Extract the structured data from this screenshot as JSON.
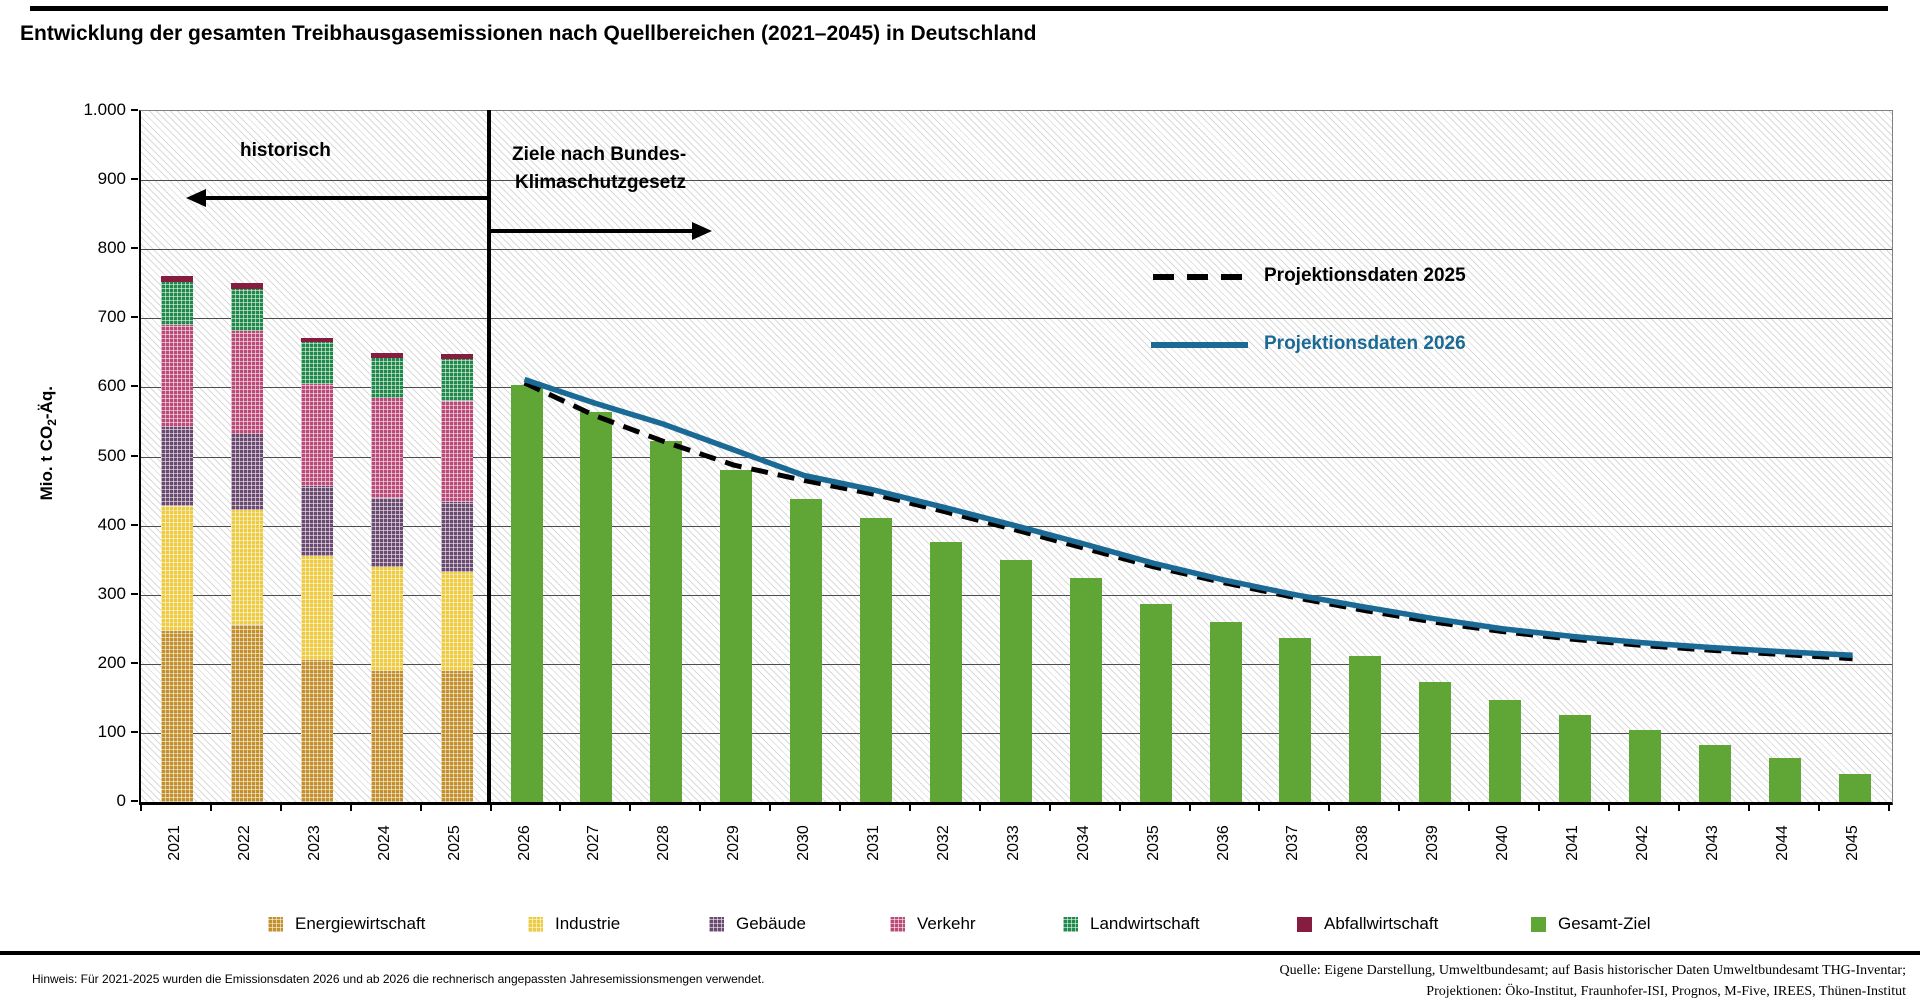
{
  "title": "Entwicklung der gesamten Treibhausgasemissionen nach Quellbereichen (2021–2045) in Deutschland",
  "y_axis": {
    "label_prefix": "Mio. t CO",
    "label_sub": "2",
    "label_suffix": "-Äq.",
    "ticks": [
      "1.000",
      "900",
      "800",
      "700",
      "600",
      "500",
      "400",
      "300",
      "200",
      "100",
      "0"
    ]
  },
  "annotations": {
    "historical": "historisch",
    "targets_line1": "Ziele nach Bundes-",
    "targets_line2": "Klimaschutzgesetz"
  },
  "line_legend": [
    {
      "label": "Projektionsdaten 2025",
      "style": "dashed",
      "color": "#000000"
    },
    {
      "label": "Projektionsdaten 2026",
      "style": "solid",
      "color": "#1b6a96"
    }
  ],
  "legend": [
    {
      "label": "Energiewirtschaft",
      "color": "#c3902c",
      "pattern": true
    },
    {
      "label": "Industrie",
      "color": "#efcb3f",
      "pattern": true
    },
    {
      "label": "Gebäude",
      "color": "#6b4a72",
      "pattern": true
    },
    {
      "label": "Verkehr",
      "color": "#bc4a78",
      "pattern": true
    },
    {
      "label": "Landwirtschaft",
      "color": "#1f8a4a",
      "pattern": true
    },
    {
      "label": "Abfallwirtschaft",
      "color": "#871c41",
      "pattern": false
    },
    {
      "label": "Gesamt-Ziel",
      "color": "#5fa636",
      "pattern": false
    }
  ],
  "footnote": "Hinweis: Für 2021-2025 wurden die Emissionsdaten 2026 und ab 2026 die rechnerisch angepassten Jahresemissionsmengen verwendet.",
  "source_line1": "Quelle: Eigene Darstellung, Umweltbundesamt; auf Basis historischer Daten Umweltbundesamt THG-Inventar;",
  "source_line2": "Projektionen: Öko-Institut, Fraunhofer-ISI, Prognos, M-Five, IREES, Thünen-Institut",
  "chart_data": {
    "type": "combo",
    "title": "Entwicklung der gesamten Treibhausgasemissionen nach Quellbereichen (2021–2045) in Deutschland",
    "ylabel": "Mio. t CO2-Äq.",
    "ylim": [
      0,
      1000
    ],
    "grid": true,
    "years_historical": [
      2021,
      2022,
      2023,
      2024,
      2025
    ],
    "stacked_series": [
      {
        "name": "Energiewirtschaft",
        "color": "#c3902c",
        "values": [
          247,
          256,
          205,
          189,
          189
        ]
      },
      {
        "name": "Industrie",
        "color": "#efcb3f",
        "values": [
          181,
          166,
          151,
          151,
          144
        ]
      },
      {
        "name": "Gebäude",
        "color": "#6b4a72",
        "values": [
          115,
          110,
          102,
          100,
          101
        ]
      },
      {
        "name": "Verkehr",
        "color": "#bc4a78",
        "values": [
          148,
          150,
          147,
          145,
          147
        ]
      },
      {
        "name": "Landwirtschaft",
        "color": "#1f8a4a",
        "values": [
          61,
          61,
          60,
          58,
          60
        ]
      },
      {
        "name": "Abfallwirtschaft",
        "color": "#871c41",
        "values": [
          9,
          8,
          7,
          7,
          7
        ]
      }
    ],
    "historical_totals": [
      761,
      751,
      672,
      650,
      648
    ],
    "target_years": [
      2026,
      2027,
      2028,
      2029,
      2030,
      2031,
      2032,
      2033,
      2034,
      2035,
      2036,
      2037,
      2038,
      2039,
      2040,
      2041,
      2042,
      2043,
      2044,
      2045
    ],
    "target_bars": {
      "name": "Gesamt-Ziel",
      "color": "#5fa636",
      "values": [
        604,
        565,
        523,
        481,
        438,
        411,
        376,
        350,
        324,
        287,
        261,
        237,
        211,
        173,
        148,
        126,
        104,
        83,
        63,
        40
      ]
    },
    "lines": [
      {
        "name": "Projektionsdaten 2025",
        "style": "dashed",
        "color": "#000000",
        "values": [
          605,
          558,
          520,
          486,
          464,
          444,
          419,
          393,
          366,
          339,
          316,
          295,
          276,
          259,
          245,
          234,
          225,
          218,
          212,
          206
        ]
      },
      {
        "name": "Projektionsdaten 2026",
        "style": "solid",
        "color": "#1b6a96",
        "values": [
          610,
          576,
          545,
          508,
          471,
          450,
          425,
          399,
          372,
          344,
          320,
          299,
          281,
          264,
          249,
          238,
          229,
          222,
          216,
          211
        ]
      }
    ]
  }
}
